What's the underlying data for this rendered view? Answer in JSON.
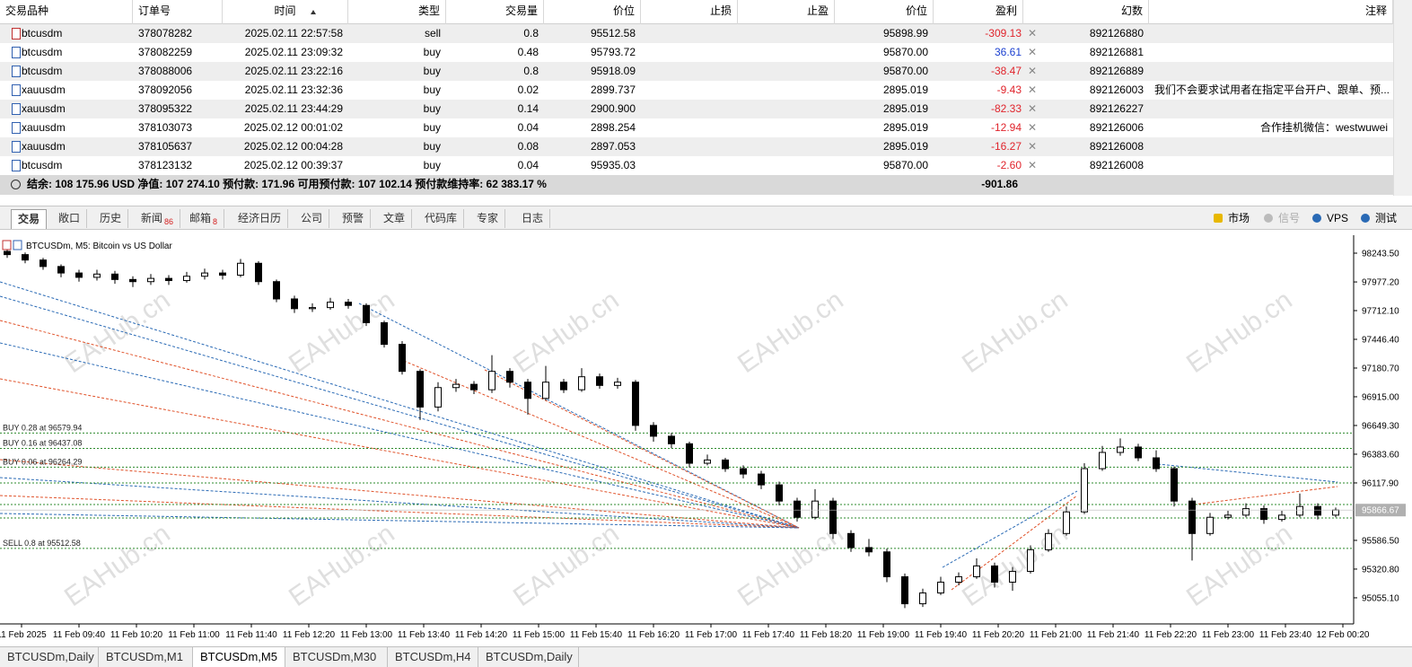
{
  "table": {
    "columns": [
      {
        "key": "symbol",
        "label": "交易品种"
      },
      {
        "key": "order",
        "label": "订单号"
      },
      {
        "key": "time",
        "label": "时间"
      },
      {
        "key": "type",
        "label": "类型"
      },
      {
        "key": "volume",
        "label": "交易量"
      },
      {
        "key": "price",
        "label": "价位"
      },
      {
        "key": "sl",
        "label": "止损"
      },
      {
        "key": "tp",
        "label": "止盈"
      },
      {
        "key": "current",
        "label": "价位"
      },
      {
        "key": "profit",
        "label": "盈利"
      },
      {
        "key": "magic",
        "label": "幻数"
      },
      {
        "key": "comment",
        "label": "注释"
      }
    ],
    "rows": [
      {
        "symbol": "btcusdm",
        "order": "378078282",
        "time": "2025.02.11 22:57:58",
        "type": "sell",
        "volume": "0.8",
        "price": "95512.58",
        "current": "95898.99",
        "profit": "-309.13",
        "magic": "892126880"
      },
      {
        "symbol": "btcusdm",
        "order": "378082259",
        "time": "2025.02.11 23:09:32",
        "type": "buy",
        "volume": "0.48",
        "price": "95793.72",
        "current": "95870.00",
        "profit": "36.61",
        "magic": "892126881"
      },
      {
        "symbol": "btcusdm",
        "order": "378088006",
        "time": "2025.02.11 23:22:16",
        "type": "buy",
        "volume": "0.8",
        "price": "95918.09",
        "current": "95870.00",
        "profit": "-38.47",
        "magic": "892126889"
      },
      {
        "symbol": "xauusdm",
        "order": "378092056",
        "time": "2025.02.11 23:32:36",
        "type": "buy",
        "volume": "0.02",
        "price": "2899.737",
        "current": "2895.019",
        "profit": "-9.43",
        "magic": "892126003",
        "comment": "我们不会要求试用者在指定平台开户、跟单、预..."
      },
      {
        "symbol": "xauusdm",
        "order": "378095322",
        "time": "2025.02.11 23:44:29",
        "type": "buy",
        "volume": "0.14",
        "price": "2900.900",
        "current": "2895.019",
        "profit": "-82.33",
        "magic": "892126227"
      },
      {
        "symbol": "xauusdm",
        "order": "378103073",
        "time": "2025.02.12 00:01:02",
        "type": "buy",
        "volume": "0.04",
        "price": "2898.254",
        "current": "2895.019",
        "profit": "-12.94",
        "magic": "892126006",
        "comment": "合作挂机微信：westwuwei"
      },
      {
        "symbol": "xauusdm",
        "order": "378105637",
        "time": "2025.02.12 00:04:28",
        "type": "buy",
        "volume": "0.08",
        "price": "2897.053",
        "current": "2895.019",
        "profit": "-16.27",
        "magic": "892126008"
      },
      {
        "symbol": "btcusdm",
        "order": "378123132",
        "time": "2025.02.12 00:39:37",
        "type": "buy",
        "volume": "0.04",
        "price": "95935.03",
        "current": "95870.00",
        "profit": "-2.60",
        "magic": "892126008"
      }
    ],
    "summary": {
      "text": "结余: 108 175.96 USD   净值: 107 274.10   预付款: 171.96   可用预付款: 107 102.14   预付款维持率: 62 383.17 %",
      "total": "-901.86"
    }
  },
  "tabs": [
    {
      "label": "交易"
    },
    {
      "label": "敞口"
    },
    {
      "label": "历史"
    },
    {
      "label": "新闻",
      "badge": "86"
    },
    {
      "label": "邮箱",
      "badge": "8"
    },
    {
      "label": "经济日历"
    },
    {
      "label": "公司"
    },
    {
      "label": "预警"
    },
    {
      "label": "文章"
    },
    {
      "label": "代码库"
    },
    {
      "label": "专家"
    },
    {
      "label": "日志"
    }
  ],
  "right_tabs": [
    "市场",
    "信号",
    "VPS",
    "测试"
  ],
  "chart_data": {
    "type": "candlestick",
    "title": "BTCUSDm, M5:  Bitcoin vs US Dollar",
    "watermark": "EAHub.cn",
    "bull_color": "#ffffff",
    "bear_color": "#000000",
    "level_color": "#2e8b2e",
    "ylim": [
      94822,
      98393
    ],
    "yticks": [
      {
        "value": 98243.5,
        "label": "98243.50"
      },
      {
        "value": 97977.2,
        "label": "97977.20"
      },
      {
        "value": 97712.1,
        "label": "97712.10"
      },
      {
        "value": 97446.4,
        "label": "97446.40"
      },
      {
        "value": 97180.7,
        "label": "97180.70"
      },
      {
        "value": 96915,
        "label": "96915.00"
      },
      {
        "value": 96649.3,
        "label": "96649.30"
      },
      {
        "value": 96383.6,
        "label": "96383.60"
      },
      {
        "value": 96117.9,
        "label": "96117.90"
      },
      {
        "value": 95586.5,
        "label": "95586.50"
      },
      {
        "value": 95320.8,
        "label": "95320.80"
      },
      {
        "value": 95055.1,
        "label": "95055.10"
      }
    ],
    "xticks": [
      "11 Feb 2025",
      "11 Feb 09:40",
      "11 Feb 10:20",
      "11 Feb 11:00",
      "11 Feb 11:40",
      "11 Feb 12:20",
      "11 Feb 13:00",
      "11 Feb 13:40",
      "11 Feb 14:20",
      "11 Feb 15:00",
      "11 Feb 15:40",
      "11 Feb 16:20",
      "11 Feb 17:00",
      "11 Feb 17:40",
      "11 Feb 18:20",
      "11 Feb 19:00",
      "11 Feb 19:40",
      "11 Feb 20:20",
      "11 Feb 21:00",
      "11 Feb 21:40",
      "11 Feb 22:20",
      "11 Feb 23:00",
      "11 Feb 23:40",
      "12 Feb 00:20"
    ],
    "last_price": 95866.67,
    "levels": [
      {
        "label": "BUY 0.28 at 96579.94",
        "price": 96579.94
      },
      {
        "label": "BUY 0.16 at 96437.08",
        "price": 96437.08
      },
      {
        "label": "BUY 0.06 at 96264.29",
        "price": 96264.29
      },
      {
        "price": 96117.9
      },
      {
        "price": 95918.09
      },
      {
        "price": 95793.72
      },
      {
        "label": "SELL 0.8 at 95512.58",
        "price": 95512.58
      }
    ],
    "candles": [
      [
        98260,
        98290,
        98200,
        98230
      ],
      [
        98230,
        98250,
        98150,
        98180
      ],
      [
        98180,
        98200,
        98090,
        98120
      ],
      [
        98120,
        98140,
        98020,
        98060
      ],
      [
        98060,
        98090,
        97980,
        98020
      ],
      [
        98020,
        98090,
        97990,
        98050
      ],
      [
        98050,
        98080,
        97960,
        98000
      ],
      [
        98000,
        98030,
        97930,
        97980
      ],
      [
        97980,
        98050,
        97950,
        98010
      ],
      [
        98010,
        98040,
        97950,
        97990
      ],
      [
        97990,
        98070,
        97970,
        98030
      ],
      [
        98030,
        98100,
        98000,
        98060
      ],
      [
        98060,
        98090,
        98000,
        98040
      ],
      [
        98040,
        98190,
        98020,
        98150
      ],
      [
        98150,
        98170,
        97950,
        97980
      ],
      [
        97980,
        98000,
        97790,
        97820
      ],
      [
        97820,
        97850,
        97690,
        97730
      ],
      [
        97730,
        97780,
        97700,
        97740
      ],
      [
        97740,
        97830,
        97720,
        97790
      ],
      [
        97790,
        97820,
        97730,
        97760
      ],
      [
        97760,
        97780,
        97570,
        97600
      ],
      [
        97600,
        97620,
        97370,
        97400
      ],
      [
        97400,
        97430,
        97120,
        97150
      ],
      [
        97150,
        97170,
        96700,
        96820
      ],
      [
        96820,
        97050,
        96780,
        97000
      ],
      [
        97000,
        97080,
        96960,
        97030
      ],
      [
        97030,
        97060,
        96940,
        96980
      ],
      [
        96980,
        97300,
        96950,
        97150
      ],
      [
        97150,
        97180,
        97000,
        97050
      ],
      [
        97050,
        97080,
        96750,
        96900
      ],
      [
        96900,
        97200,
        96880,
        97050
      ],
      [
        97050,
        97080,
        96950,
        96980
      ],
      [
        96980,
        97180,
        96960,
        97100
      ],
      [
        97100,
        97130,
        96990,
        97020
      ],
      [
        97020,
        97090,
        96990,
        97050
      ],
      [
        97050,
        97070,
        96600,
        96650
      ],
      [
        96650,
        96680,
        96500,
        96550
      ],
      [
        96550,
        96580,
        96440,
        96480
      ],
      [
        96480,
        96500,
        96260,
        96300
      ],
      [
        96300,
        96380,
        96280,
        96330
      ],
      [
        96330,
        96350,
        96220,
        96250
      ],
      [
        96250,
        96280,
        96160,
        96200
      ],
      [
        96200,
        96230,
        96060,
        96100
      ],
      [
        96100,
        96130,
        95910,
        95950
      ],
      [
        95950,
        95980,
        95760,
        95800
      ],
      [
        95800,
        96060,
        95780,
        95950
      ],
      [
        95950,
        95980,
        95600,
        95650
      ],
      [
        95650,
        95680,
        95480,
        95520
      ],
      [
        95520,
        95600,
        95440,
        95480
      ],
      [
        95480,
        95510,
        95200,
        95250
      ],
      [
        95250,
        95280,
        94960,
        95000
      ],
      [
        95000,
        95140,
        94970,
        95100
      ],
      [
        95100,
        95250,
        95080,
        95200
      ],
      [
        95200,
        95290,
        95170,
        95250
      ],
      [
        95250,
        95420,
        95230,
        95350
      ],
      [
        95350,
        95380,
        95150,
        95200
      ],
      [
        95200,
        95340,
        95120,
        95300
      ],
      [
        95300,
        95540,
        95280,
        95500
      ],
      [
        95500,
        95690,
        95480,
        95650
      ],
      [
        95650,
        95900,
        95630,
        95850
      ],
      [
        95850,
        96300,
        95830,
        96250
      ],
      [
        96250,
        96460,
        96230,
        96400
      ],
      [
        96400,
        96530,
        96370,
        96450
      ],
      [
        96450,
        96480,
        96320,
        96350
      ],
      [
        96350,
        96420,
        96220,
        96250
      ],
      [
        96250,
        96270,
        95900,
        95950
      ],
      [
        95950,
        95980,
        95400,
        95650
      ],
      [
        95650,
        95840,
        95630,
        95800
      ],
      [
        95800,
        95860,
        95780,
        95820
      ],
      [
        95820,
        95930,
        95800,
        95880
      ],
      [
        95880,
        95910,
        95740,
        95780
      ],
      [
        95780,
        95860,
        95760,
        95820
      ],
      [
        95820,
        96020,
        95800,
        95900
      ],
      [
        95900,
        95930,
        95780,
        95820
      ],
      [
        95820,
        95890,
        95800,
        95866.67
      ]
    ]
  },
  "bottom_tabs": [
    "BTCUSDm,Daily",
    "BTCUSDm,M1",
    "BTCUSDm,M5",
    "BTCUSDm,M30",
    "BTCUSDm,H4",
    "BTCUSDm,Daily"
  ]
}
